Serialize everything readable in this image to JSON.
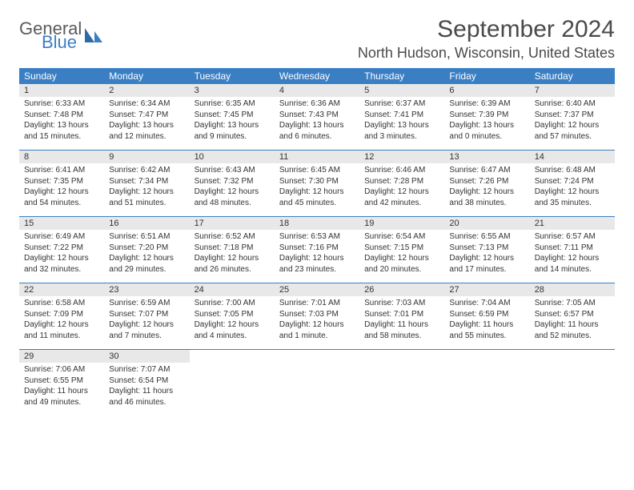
{
  "logo": {
    "word1": "General",
    "word2": "Blue"
  },
  "title": "September 2024",
  "location": "North Hudson, Wisconsin, United States",
  "colors": {
    "accent": "#3a7fc4",
    "header_text": "#ffffff",
    "daynum_bg": "#e8e8e8",
    "text": "#333333",
    "title_text": "#4a4a4a",
    "logo_gray": "#5a5a5a"
  },
  "weekdays": [
    "Sunday",
    "Monday",
    "Tuesday",
    "Wednesday",
    "Thursday",
    "Friday",
    "Saturday"
  ],
  "weeks": [
    [
      {
        "n": "1",
        "sr": "Sunrise: 6:33 AM",
        "ss": "Sunset: 7:48 PM",
        "d1": "Daylight: 13 hours",
        "d2": "and 15 minutes."
      },
      {
        "n": "2",
        "sr": "Sunrise: 6:34 AM",
        "ss": "Sunset: 7:47 PM",
        "d1": "Daylight: 13 hours",
        "d2": "and 12 minutes."
      },
      {
        "n": "3",
        "sr": "Sunrise: 6:35 AM",
        "ss": "Sunset: 7:45 PM",
        "d1": "Daylight: 13 hours",
        "d2": "and 9 minutes."
      },
      {
        "n": "4",
        "sr": "Sunrise: 6:36 AM",
        "ss": "Sunset: 7:43 PM",
        "d1": "Daylight: 13 hours",
        "d2": "and 6 minutes."
      },
      {
        "n": "5",
        "sr": "Sunrise: 6:37 AM",
        "ss": "Sunset: 7:41 PM",
        "d1": "Daylight: 13 hours",
        "d2": "and 3 minutes."
      },
      {
        "n": "6",
        "sr": "Sunrise: 6:39 AM",
        "ss": "Sunset: 7:39 PM",
        "d1": "Daylight: 13 hours",
        "d2": "and 0 minutes."
      },
      {
        "n": "7",
        "sr": "Sunrise: 6:40 AM",
        "ss": "Sunset: 7:37 PM",
        "d1": "Daylight: 12 hours",
        "d2": "and 57 minutes."
      }
    ],
    [
      {
        "n": "8",
        "sr": "Sunrise: 6:41 AM",
        "ss": "Sunset: 7:35 PM",
        "d1": "Daylight: 12 hours",
        "d2": "and 54 minutes."
      },
      {
        "n": "9",
        "sr": "Sunrise: 6:42 AM",
        "ss": "Sunset: 7:34 PM",
        "d1": "Daylight: 12 hours",
        "d2": "and 51 minutes."
      },
      {
        "n": "10",
        "sr": "Sunrise: 6:43 AM",
        "ss": "Sunset: 7:32 PM",
        "d1": "Daylight: 12 hours",
        "d2": "and 48 minutes."
      },
      {
        "n": "11",
        "sr": "Sunrise: 6:45 AM",
        "ss": "Sunset: 7:30 PM",
        "d1": "Daylight: 12 hours",
        "d2": "and 45 minutes."
      },
      {
        "n": "12",
        "sr": "Sunrise: 6:46 AM",
        "ss": "Sunset: 7:28 PM",
        "d1": "Daylight: 12 hours",
        "d2": "and 42 minutes."
      },
      {
        "n": "13",
        "sr": "Sunrise: 6:47 AM",
        "ss": "Sunset: 7:26 PM",
        "d1": "Daylight: 12 hours",
        "d2": "and 38 minutes."
      },
      {
        "n": "14",
        "sr": "Sunrise: 6:48 AM",
        "ss": "Sunset: 7:24 PM",
        "d1": "Daylight: 12 hours",
        "d2": "and 35 minutes."
      }
    ],
    [
      {
        "n": "15",
        "sr": "Sunrise: 6:49 AM",
        "ss": "Sunset: 7:22 PM",
        "d1": "Daylight: 12 hours",
        "d2": "and 32 minutes."
      },
      {
        "n": "16",
        "sr": "Sunrise: 6:51 AM",
        "ss": "Sunset: 7:20 PM",
        "d1": "Daylight: 12 hours",
        "d2": "and 29 minutes."
      },
      {
        "n": "17",
        "sr": "Sunrise: 6:52 AM",
        "ss": "Sunset: 7:18 PM",
        "d1": "Daylight: 12 hours",
        "d2": "and 26 minutes."
      },
      {
        "n": "18",
        "sr": "Sunrise: 6:53 AM",
        "ss": "Sunset: 7:16 PM",
        "d1": "Daylight: 12 hours",
        "d2": "and 23 minutes."
      },
      {
        "n": "19",
        "sr": "Sunrise: 6:54 AM",
        "ss": "Sunset: 7:15 PM",
        "d1": "Daylight: 12 hours",
        "d2": "and 20 minutes."
      },
      {
        "n": "20",
        "sr": "Sunrise: 6:55 AM",
        "ss": "Sunset: 7:13 PM",
        "d1": "Daylight: 12 hours",
        "d2": "and 17 minutes."
      },
      {
        "n": "21",
        "sr": "Sunrise: 6:57 AM",
        "ss": "Sunset: 7:11 PM",
        "d1": "Daylight: 12 hours",
        "d2": "and 14 minutes."
      }
    ],
    [
      {
        "n": "22",
        "sr": "Sunrise: 6:58 AM",
        "ss": "Sunset: 7:09 PM",
        "d1": "Daylight: 12 hours",
        "d2": "and 11 minutes."
      },
      {
        "n": "23",
        "sr": "Sunrise: 6:59 AM",
        "ss": "Sunset: 7:07 PM",
        "d1": "Daylight: 12 hours",
        "d2": "and 7 minutes."
      },
      {
        "n": "24",
        "sr": "Sunrise: 7:00 AM",
        "ss": "Sunset: 7:05 PM",
        "d1": "Daylight: 12 hours",
        "d2": "and 4 minutes."
      },
      {
        "n": "25",
        "sr": "Sunrise: 7:01 AM",
        "ss": "Sunset: 7:03 PM",
        "d1": "Daylight: 12 hours",
        "d2": "and 1 minute."
      },
      {
        "n": "26",
        "sr": "Sunrise: 7:03 AM",
        "ss": "Sunset: 7:01 PM",
        "d1": "Daylight: 11 hours",
        "d2": "and 58 minutes."
      },
      {
        "n": "27",
        "sr": "Sunrise: 7:04 AM",
        "ss": "Sunset: 6:59 PM",
        "d1": "Daylight: 11 hours",
        "d2": "and 55 minutes."
      },
      {
        "n": "28",
        "sr": "Sunrise: 7:05 AM",
        "ss": "Sunset: 6:57 PM",
        "d1": "Daylight: 11 hours",
        "d2": "and 52 minutes."
      }
    ],
    [
      {
        "n": "29",
        "sr": "Sunrise: 7:06 AM",
        "ss": "Sunset: 6:55 PM",
        "d1": "Daylight: 11 hours",
        "d2": "and 49 minutes."
      },
      {
        "n": "30",
        "sr": "Sunrise: 7:07 AM",
        "ss": "Sunset: 6:54 PM",
        "d1": "Daylight: 11 hours",
        "d2": "and 46 minutes."
      },
      {
        "empty": true
      },
      {
        "empty": true
      },
      {
        "empty": true
      },
      {
        "empty": true
      },
      {
        "empty": true
      }
    ]
  ]
}
